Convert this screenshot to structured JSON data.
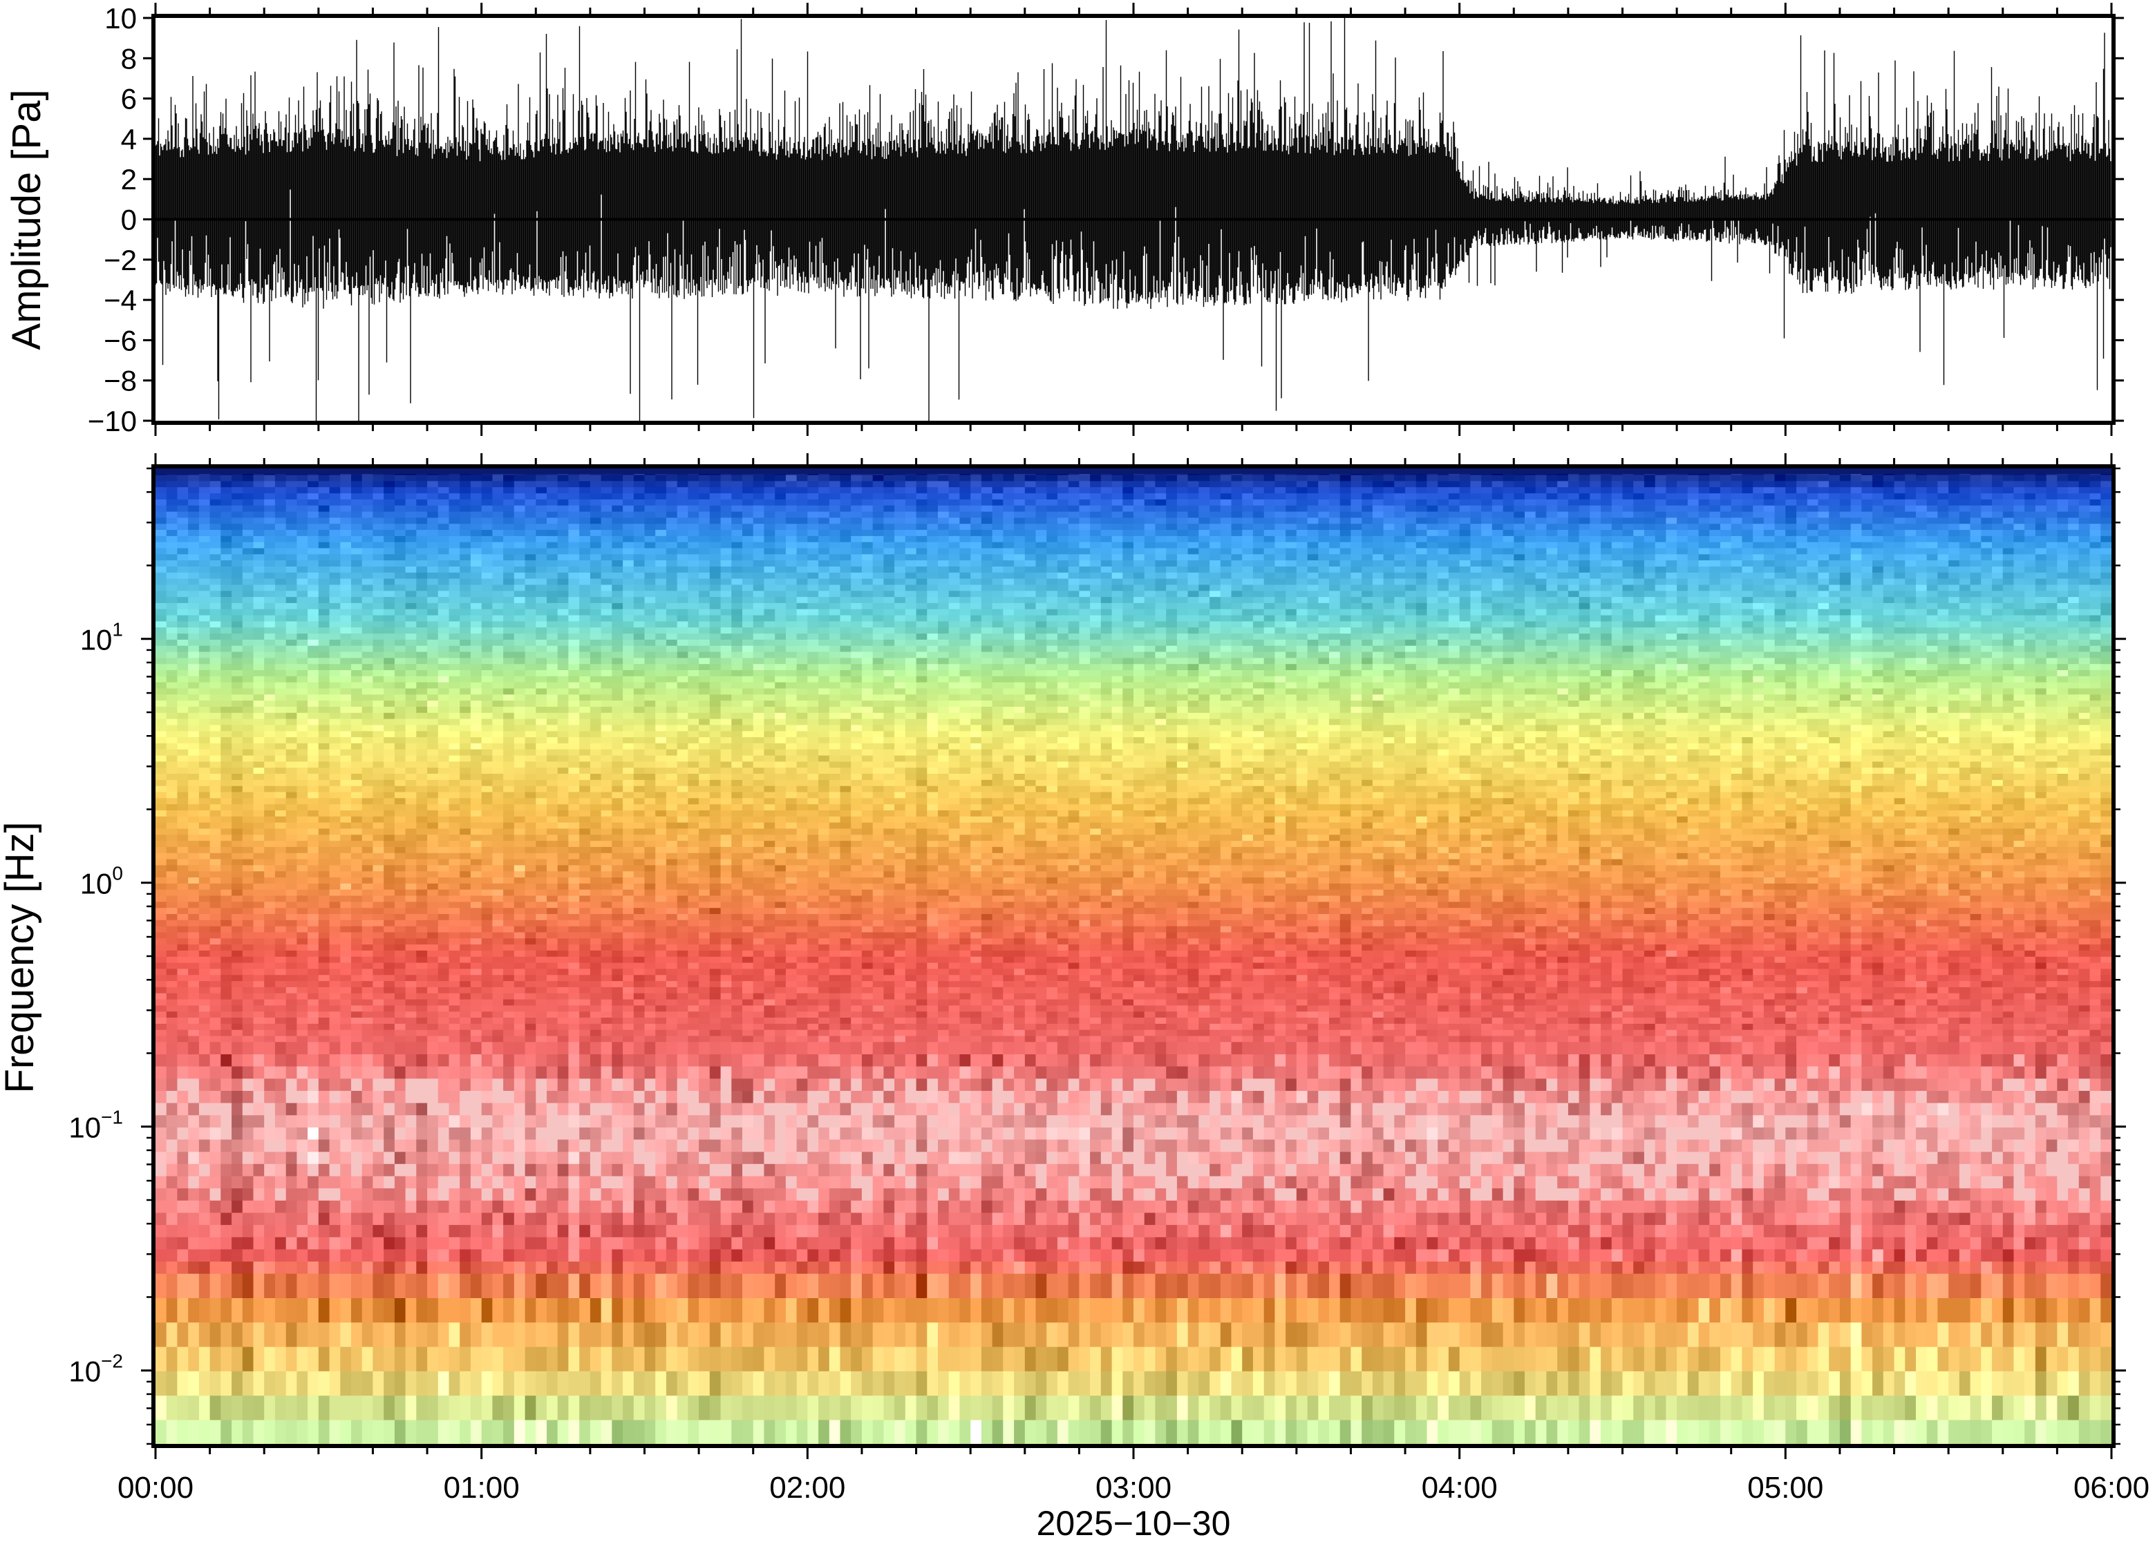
{
  "chart_data": [
    {
      "type": "line",
      "panel": "waveform",
      "ylabel": "Amplitude [Pa]",
      "ylim": [
        -10,
        10
      ],
      "yticks": [
        {
          "value": 10,
          "label": "10"
        },
        {
          "value": 8,
          "label": "8"
        },
        {
          "value": 6,
          "label": "6"
        },
        {
          "value": 4,
          "label": "4"
        },
        {
          "value": 2,
          "label": "2"
        },
        {
          "value": 0,
          "label": "0"
        },
        {
          "value": -2,
          "label": "−2"
        },
        {
          "value": -4,
          "label": "−4"
        },
        {
          "value": -6,
          "label": "−6"
        },
        {
          "value": -8,
          "label": "−8"
        },
        {
          "value": -10,
          "label": "−10"
        }
      ],
      "xlim_hours": [
        0,
        6
      ],
      "envelope_p95": {
        "x_hours": [
          0,
          0.5,
          1.0,
          1.5,
          2.0,
          2.5,
          3.0,
          3.5,
          3.95,
          4.05,
          4.5,
          4.95,
          5.05,
          5.5,
          6.0
        ],
        "upper": [
          4.0,
          4.5,
          3.8,
          4.5,
          3.8,
          4.2,
          4.5,
          4.3,
          4.0,
          1.2,
          1.0,
          1.3,
          3.8,
          3.8,
          3.8
        ],
        "lower": [
          -3.8,
          -4.5,
          -3.8,
          -4.0,
          -3.8,
          -4.0,
          -4.5,
          -4.2,
          -4.0,
          -1.4,
          -1.0,
          -1.3,
          -3.8,
          -3.5,
          -3.5
        ]
      },
      "grid": false
    },
    {
      "type": "heatmap",
      "panel": "spectrogram",
      "ylabel": "Frequency [Hz]",
      "yscale": "log",
      "ylim": [
        0.005,
        50
      ],
      "yticks": [
        {
          "value": 10,
          "base": "10",
          "exp": "1"
        },
        {
          "value": 1,
          "base": "10",
          "exp": "0"
        },
        {
          "value": 0.1,
          "base": "10",
          "exp": "−1"
        },
        {
          "value": 0.01,
          "base": "10",
          "exp": "−2"
        }
      ],
      "xlim_hours": [
        0,
        6
      ],
      "colormap": [
        "#0a1a6e",
        "#1f4fd6",
        "#3aa0f0",
        "#6cd6d6",
        "#b8f090",
        "#f4f07a",
        "#f6c050",
        "#f3944a",
        "#ee5a50",
        "#f06a6a",
        "#f5a8a8"
      ],
      "colormap_by_frequency": [
        {
          "hz": 50,
          "color": "#0a1a6e"
        },
        {
          "hz": 40,
          "color": "#1f4fd6"
        },
        {
          "hz": 25,
          "color": "#3aa0f0"
        },
        {
          "hz": 12,
          "color": "#6cd6d6"
        },
        {
          "hz": 7,
          "color": "#b8f090"
        },
        {
          "hz": 4,
          "color": "#f4f07a"
        },
        {
          "hz": 2,
          "color": "#f6c050"
        },
        {
          "hz": 1,
          "color": "#f3944a"
        },
        {
          "hz": 0.5,
          "color": "#ee5a50"
        },
        {
          "hz": 0.2,
          "color": "#f06a6a"
        },
        {
          "hz": 0.1,
          "color": "#f5a8a8"
        },
        {
          "hz": 0.05,
          "color": "#f28080"
        },
        {
          "hz": 0.03,
          "color": "#ef6060"
        },
        {
          "hz": 0.018,
          "color": "#f39a48"
        },
        {
          "hz": 0.01,
          "color": "#f6d070"
        },
        {
          "hz": 0.006,
          "color": "#c8f0a0"
        }
      ],
      "grid": false
    }
  ],
  "xaxis": {
    "ticks": [
      {
        "hours": 0,
        "label": "00:00"
      },
      {
        "hours": 1,
        "label": "01:00"
      },
      {
        "hours": 2,
        "label": "02:00"
      },
      {
        "hours": 3,
        "label": "03:00"
      },
      {
        "hours": 4,
        "label": "04:00"
      },
      {
        "hours": 5,
        "label": "05:00"
      },
      {
        "hours": 6,
        "label": "06:00"
      }
    ],
    "minor_tick_minutes": 10,
    "date_label": "2025−10−30"
  }
}
